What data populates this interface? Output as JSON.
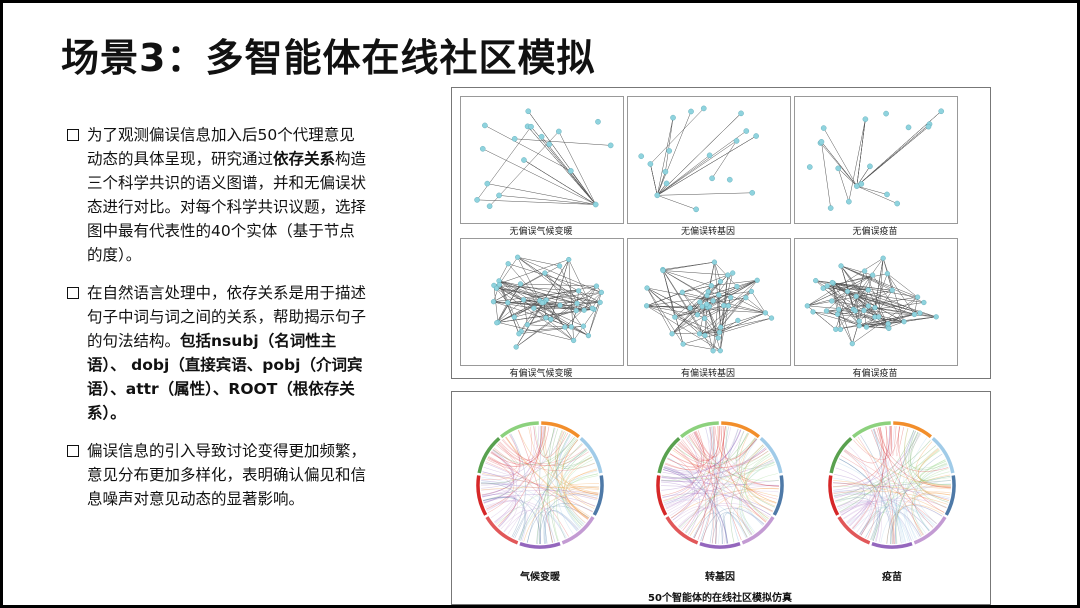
{
  "slide": {
    "title": "场景3：多智能体在线社区模拟",
    "bullets": [
      {
        "pre": "为了观测偏误信息加入后50个代理意见动态的具体呈现，研究通过",
        "bold": "依存关系",
        "post": "构造三个科学共识的语义图谱，并和无偏误状态进行对比。对每个科学共识议题，选择图中最有代表性的40个实体（基于节点的度）。",
        "bold2": "",
        "post2": ""
      },
      {
        "pre": "在自然语言处理中，依存关系是用于描述句子中词与词之间的关系，帮助揭示句子的句法结构。",
        "bold": "包括nsubj（名词性主语）、 dobj（直接宾语、pobj（介词宾语）、attr（属性）、ROOT（根依存关系）。",
        "post": "",
        "bold2": "",
        "post2": ""
      },
      {
        "pre": "偏误信息的引入导致讨论变得更加频繁，意见分布更加多样化，表明确认偏见和信息噪声对意见动态的显著影响。",
        "bold": "",
        "post": "",
        "bold2": "",
        "post2": ""
      }
    ]
  },
  "networks": {
    "captions": [
      "无偏误气候变暖",
      "无偏误转基因",
      "无偏误疫苗",
      "有偏误气候变暖",
      "有偏误转基因",
      "有偏误疫苗"
    ],
    "node_color": "#8fd3de"
  },
  "chords": {
    "captions": [
      "气候变暖",
      "转基因",
      "疫苗"
    ],
    "footer": "50个智能体的在线社区模拟仿真",
    "segment_colors": [
      "#f28e2b",
      "#a0cbe8",
      "#4e79a7",
      "#c39bd3",
      "#9467bd",
      "#e15759",
      "#d62728",
      "#59a14f",
      "#8cd17d"
    ]
  }
}
